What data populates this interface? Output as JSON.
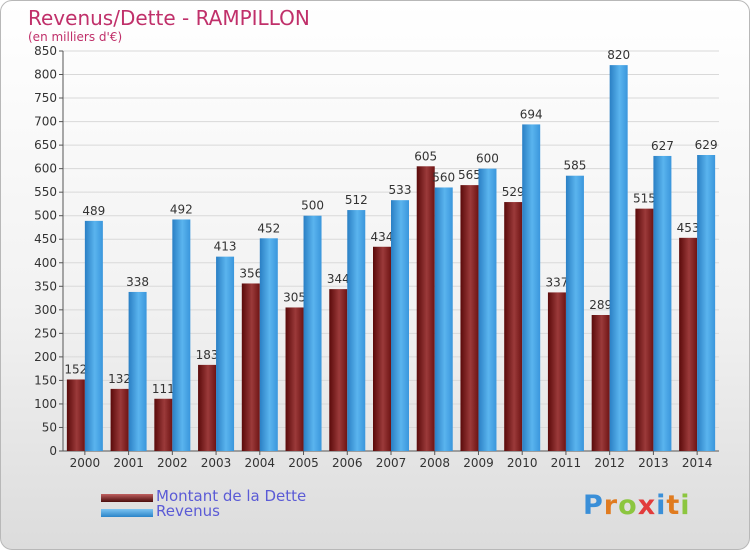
{
  "header": {
    "title": "Revenus/Dette - RAMPILLON",
    "subtitle": "(en milliers d'€)"
  },
  "legend": {
    "items": [
      {
        "label": "Montant de la Dette",
        "color": "#7a1a1a"
      },
      {
        "label": "Revenus",
        "color": "#3c9ee2"
      }
    ]
  },
  "logo": {
    "text": "Proxiti",
    "colors": [
      "#3a8fd8",
      "#e07b1f",
      "#8cc63f",
      "#e23b3b",
      "#3a8fd8",
      "#e07b1f",
      "#8cc63f"
    ]
  },
  "chart_data": {
    "type": "bar",
    "title": "Revenus/Dette - RAMPILLON",
    "subtitle": "(en milliers d'€)",
    "categories": [
      "2000",
      "2001",
      "2002",
      "2003",
      "2004",
      "2005",
      "2006",
      "2007",
      "2008",
      "2009",
      "2010",
      "2011",
      "2012",
      "2013",
      "2014"
    ],
    "series": [
      {
        "name": "Montant de la Dette",
        "color": "#7a1a1a",
        "values": [
          152,
          132,
          111,
          183,
          356,
          305,
          344,
          434,
          605,
          565,
          529,
          337,
          289,
          515,
          453
        ]
      },
      {
        "name": "Revenus",
        "color": "#3c9ee2",
        "values": [
          489,
          338,
          492,
          413,
          452,
          500,
          512,
          533,
          560,
          600,
          694,
          585,
          820,
          627,
          629
        ]
      }
    ],
    "ylim": [
      0,
      850
    ],
    "yticks": [
      0,
      50,
      100,
      150,
      200,
      250,
      300,
      350,
      400,
      450,
      500,
      550,
      600,
      650,
      700,
      750,
      800,
      850
    ],
    "grid": true,
    "legend_position": "bottom-left"
  }
}
